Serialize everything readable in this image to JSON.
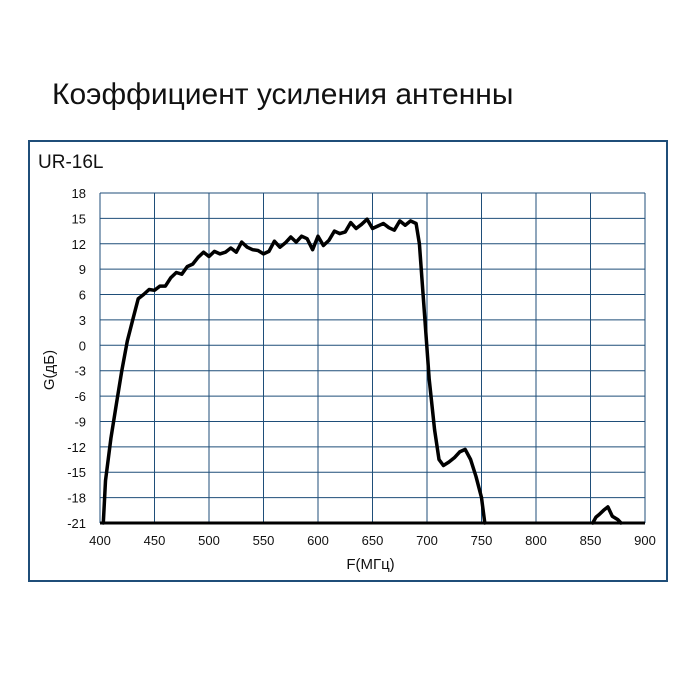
{
  "page": {
    "title": "Коэффициент усиления антенны",
    "model": "UR-16L"
  },
  "colors": {
    "grid": "#1f4e79",
    "frame": "#1f4e79",
    "line": "#000000"
  },
  "chart_data": {
    "type": "line",
    "title": "Коэффициент усиления антенны",
    "xlabel": "F(МГц)",
    "ylabel": "G(дБ)",
    "xlim": [
      400,
      900
    ],
    "ylim": [
      -21,
      18
    ],
    "xticks": [
      400,
      450,
      500,
      550,
      600,
      650,
      700,
      750,
      800,
      850,
      900
    ],
    "yticks": [
      18,
      15,
      12,
      9,
      6,
      3,
      0,
      -3,
      -6,
      -9,
      -12,
      -15,
      -18,
      -21
    ],
    "grid": true,
    "series": [
      {
        "segments": [
          [
            [
              403,
              -21
            ],
            [
              405,
              -16
            ],
            [
              410,
              -11
            ],
            [
              415,
              -7
            ],
            [
              420,
              -3
            ],
            [
              425,
              0.5
            ],
            [
              430,
              3
            ],
            [
              435,
              5.5
            ],
            [
              440,
              6
            ],
            [
              445,
              6.6
            ],
            [
              450,
              6.5
            ],
            [
              455,
              7
            ],
            [
              460,
              7
            ],
            [
              465,
              8
            ],
            [
              470,
              8.6
            ],
            [
              475,
              8.4
            ],
            [
              480,
              9.3
            ],
            [
              485,
              9.6
            ],
            [
              490,
              10.4
            ],
            [
              495,
              11
            ],
            [
              500,
              10.5
            ],
            [
              505,
              11.1
            ],
            [
              510,
              10.8
            ],
            [
              515,
              11
            ],
            [
              520,
              11.5
            ],
            [
              525,
              11
            ],
            [
              530,
              12.2
            ],
            [
              535,
              11.6
            ],
            [
              540,
              11.3
            ],
            [
              545,
              11.2
            ],
            [
              550,
              10.8
            ],
            [
              555,
              11.1
            ],
            [
              560,
              12.3
            ],
            [
              565,
              11.6
            ],
            [
              570,
              12.1
            ],
            [
              575,
              12.8
            ],
            [
              580,
              12.2
            ],
            [
              585,
              12.9
            ],
            [
              590,
              12.6
            ],
            [
              595,
              11.3
            ],
            [
              600,
              12.9
            ],
            [
              605,
              11.8
            ],
            [
              610,
              12.4
            ],
            [
              615,
              13.5
            ],
            [
              620,
              13.2
            ],
            [
              625,
              13.4
            ],
            [
              630,
              14.5
            ],
            [
              635,
              13.8
            ],
            [
              640,
              14.3
            ],
            [
              645,
              14.9
            ],
            [
              650,
              13.8
            ],
            [
              655,
              14.1
            ],
            [
              660,
              14.4
            ],
            [
              665,
              13.9
            ],
            [
              670,
              13.6
            ],
            [
              675,
              14.7
            ],
            [
              680,
              14.2
            ],
            [
              685,
              14.7
            ],
            [
              690,
              14.4
            ],
            [
              693,
              12
            ],
            [
              697,
              5
            ],
            [
              702,
              -4
            ],
            [
              707,
              -10
            ],
            [
              711,
              -13.5
            ],
            [
              715,
              -14.2
            ],
            [
              720,
              -13.8
            ],
            [
              725,
              -13.3
            ],
            [
              730,
              -12.6
            ],
            [
              735,
              -12.3
            ],
            [
              740,
              -13.5
            ],
            [
              745,
              -15.5
            ],
            [
              750,
              -18
            ],
            [
              753,
              -21
            ]
          ],
          [
            [
              852,
              -21
            ],
            [
              855,
              -20.3
            ],
            [
              858,
              -20
            ],
            [
              862,
              -19.5
            ],
            [
              866,
              -19.1
            ],
            [
              870,
              -20.2
            ],
            [
              875,
              -20.6
            ],
            [
              878,
              -21
            ]
          ]
        ]
      }
    ]
  }
}
